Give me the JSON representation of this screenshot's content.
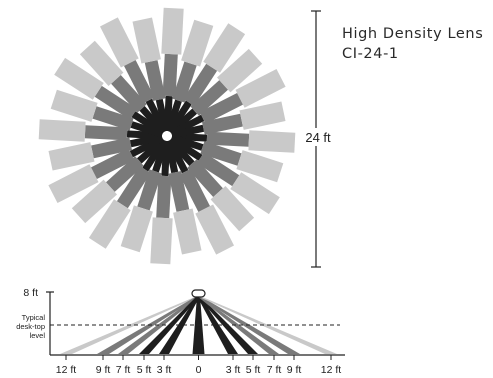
{
  "title": {
    "line1": "High Density Lens",
    "line2": "CI-24-1"
  },
  "coverage_diameter_label": "24 ft",
  "side_view": {
    "mount_height_label": "8 ft",
    "desk_label_lines": [
      "Typical",
      "desk-top",
      "level"
    ],
    "distance_labels": [
      "12 ft",
      "9 ft",
      "7 ft",
      "5 ft",
      "3 ft",
      "0",
      "3 ft",
      "5 ft",
      "7 ft",
      "9 ft",
      "12 ft"
    ]
  },
  "colors": {
    "dark": "#1e1e1e",
    "mid": "#7a7a7a",
    "light": "#c9c9c9",
    "axis": "#222222"
  }
}
